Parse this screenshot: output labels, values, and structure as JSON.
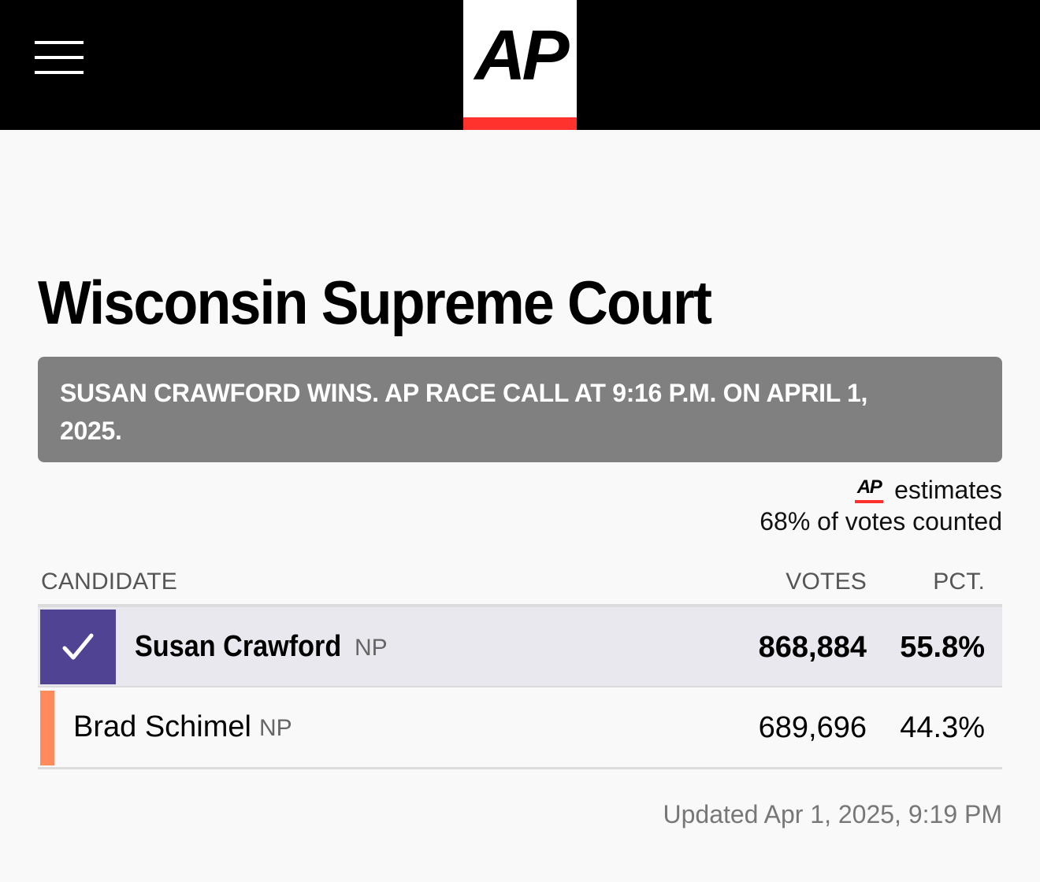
{
  "header": {
    "menu_icon": "hamburger-menu-icon",
    "logo_text": "AP",
    "colors": {
      "background": "#000000",
      "logo_accent": "#ff322e"
    }
  },
  "race": {
    "title": "Wisconsin Supreme Court",
    "call_banner": "SUSAN CRAWFORD WINS. AP RACE CALL AT 9:16 P.M. ON APRIL 1, 2025.",
    "estimate_logo": "AP",
    "estimate_label": "estimates",
    "votes_counted": "68% of votes counted",
    "columns": {
      "candidate": "CANDIDATE",
      "votes": "VOTES",
      "pct": "PCT."
    },
    "candidates": [
      {
        "name": "Susan Crawford",
        "party": "NP",
        "votes": "868,884",
        "pct": "55.8%",
        "winner": true,
        "color": "#514394"
      },
      {
        "name": "Brad Schimel",
        "party": "NP",
        "votes": "689,696",
        "pct": "44.3%",
        "winner": false,
        "color": "#ff8a5b"
      }
    ],
    "updated": "Updated Apr 1, 2025, 9:19 PM"
  }
}
